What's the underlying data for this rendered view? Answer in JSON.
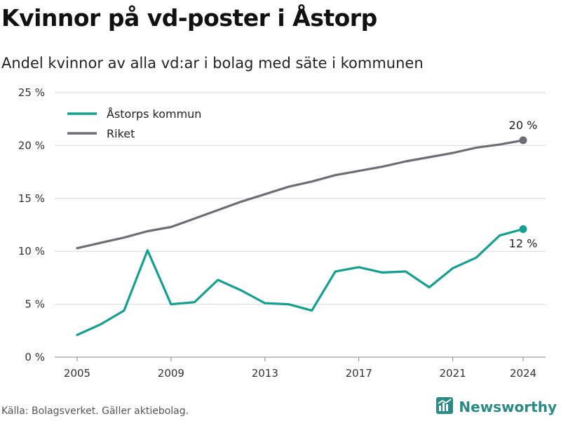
{
  "title": "Kvinnor på vd-poster i Åstorp",
  "subtitle": "Andel kvinnor av alla vd:ar i bolag med säte i kommunen",
  "source": "Källa: Bolagsverket. Gäller aktiebolag.",
  "brand": {
    "name": "Newsworthy",
    "icon": "newsworthy-logo-icon"
  },
  "colors": {
    "series_astorp": "#13a090",
    "series_riket": "#6e6d74",
    "grid": "#d9d9d9",
    "brand": "#2b8a84"
  },
  "chart_data": {
    "type": "line",
    "title": "Kvinnor på vd-poster i Åstorp",
    "subtitle": "Andel kvinnor av alla vd:ar i bolag med säte i kommunen",
    "xlabel": "",
    "ylabel": "",
    "xlim": [
      2005,
      2024
    ],
    "ylim": [
      0,
      25
    ],
    "grid": true,
    "legend_position": "top-left",
    "x": [
      2005,
      2006,
      2007,
      2008,
      2009,
      2010,
      2011,
      2012,
      2013,
      2014,
      2015,
      2016,
      2017,
      2018,
      2019,
      2020,
      2021,
      2022,
      2023,
      2024
    ],
    "x_ticks": [
      "2005",
      "2009",
      "2013",
      "2017",
      "2021",
      "2024"
    ],
    "y_ticks": [
      "0 %",
      "5 %",
      "10 %",
      "15 %",
      "20 %",
      "25 %"
    ],
    "series": [
      {
        "name": "Åstorps kommun",
        "color": "#13a090",
        "values": [
          2.1,
          3.1,
          4.4,
          10.1,
          5.0,
          5.2,
          7.3,
          6.3,
          5.1,
          5.0,
          4.4,
          8.1,
          8.5,
          8.0,
          8.1,
          6.6,
          8.4,
          9.4,
          11.5,
          12.1
        ],
        "end_label": "12 %"
      },
      {
        "name": "Riket",
        "color": "#6e6d74",
        "values": [
          10.3,
          10.8,
          11.3,
          11.9,
          12.3,
          13.1,
          13.9,
          14.7,
          15.4,
          16.1,
          16.6,
          17.2,
          17.6,
          18.0,
          18.5,
          18.9,
          19.3,
          19.8,
          20.1,
          20.5
        ],
        "end_label": "20 %"
      }
    ]
  }
}
